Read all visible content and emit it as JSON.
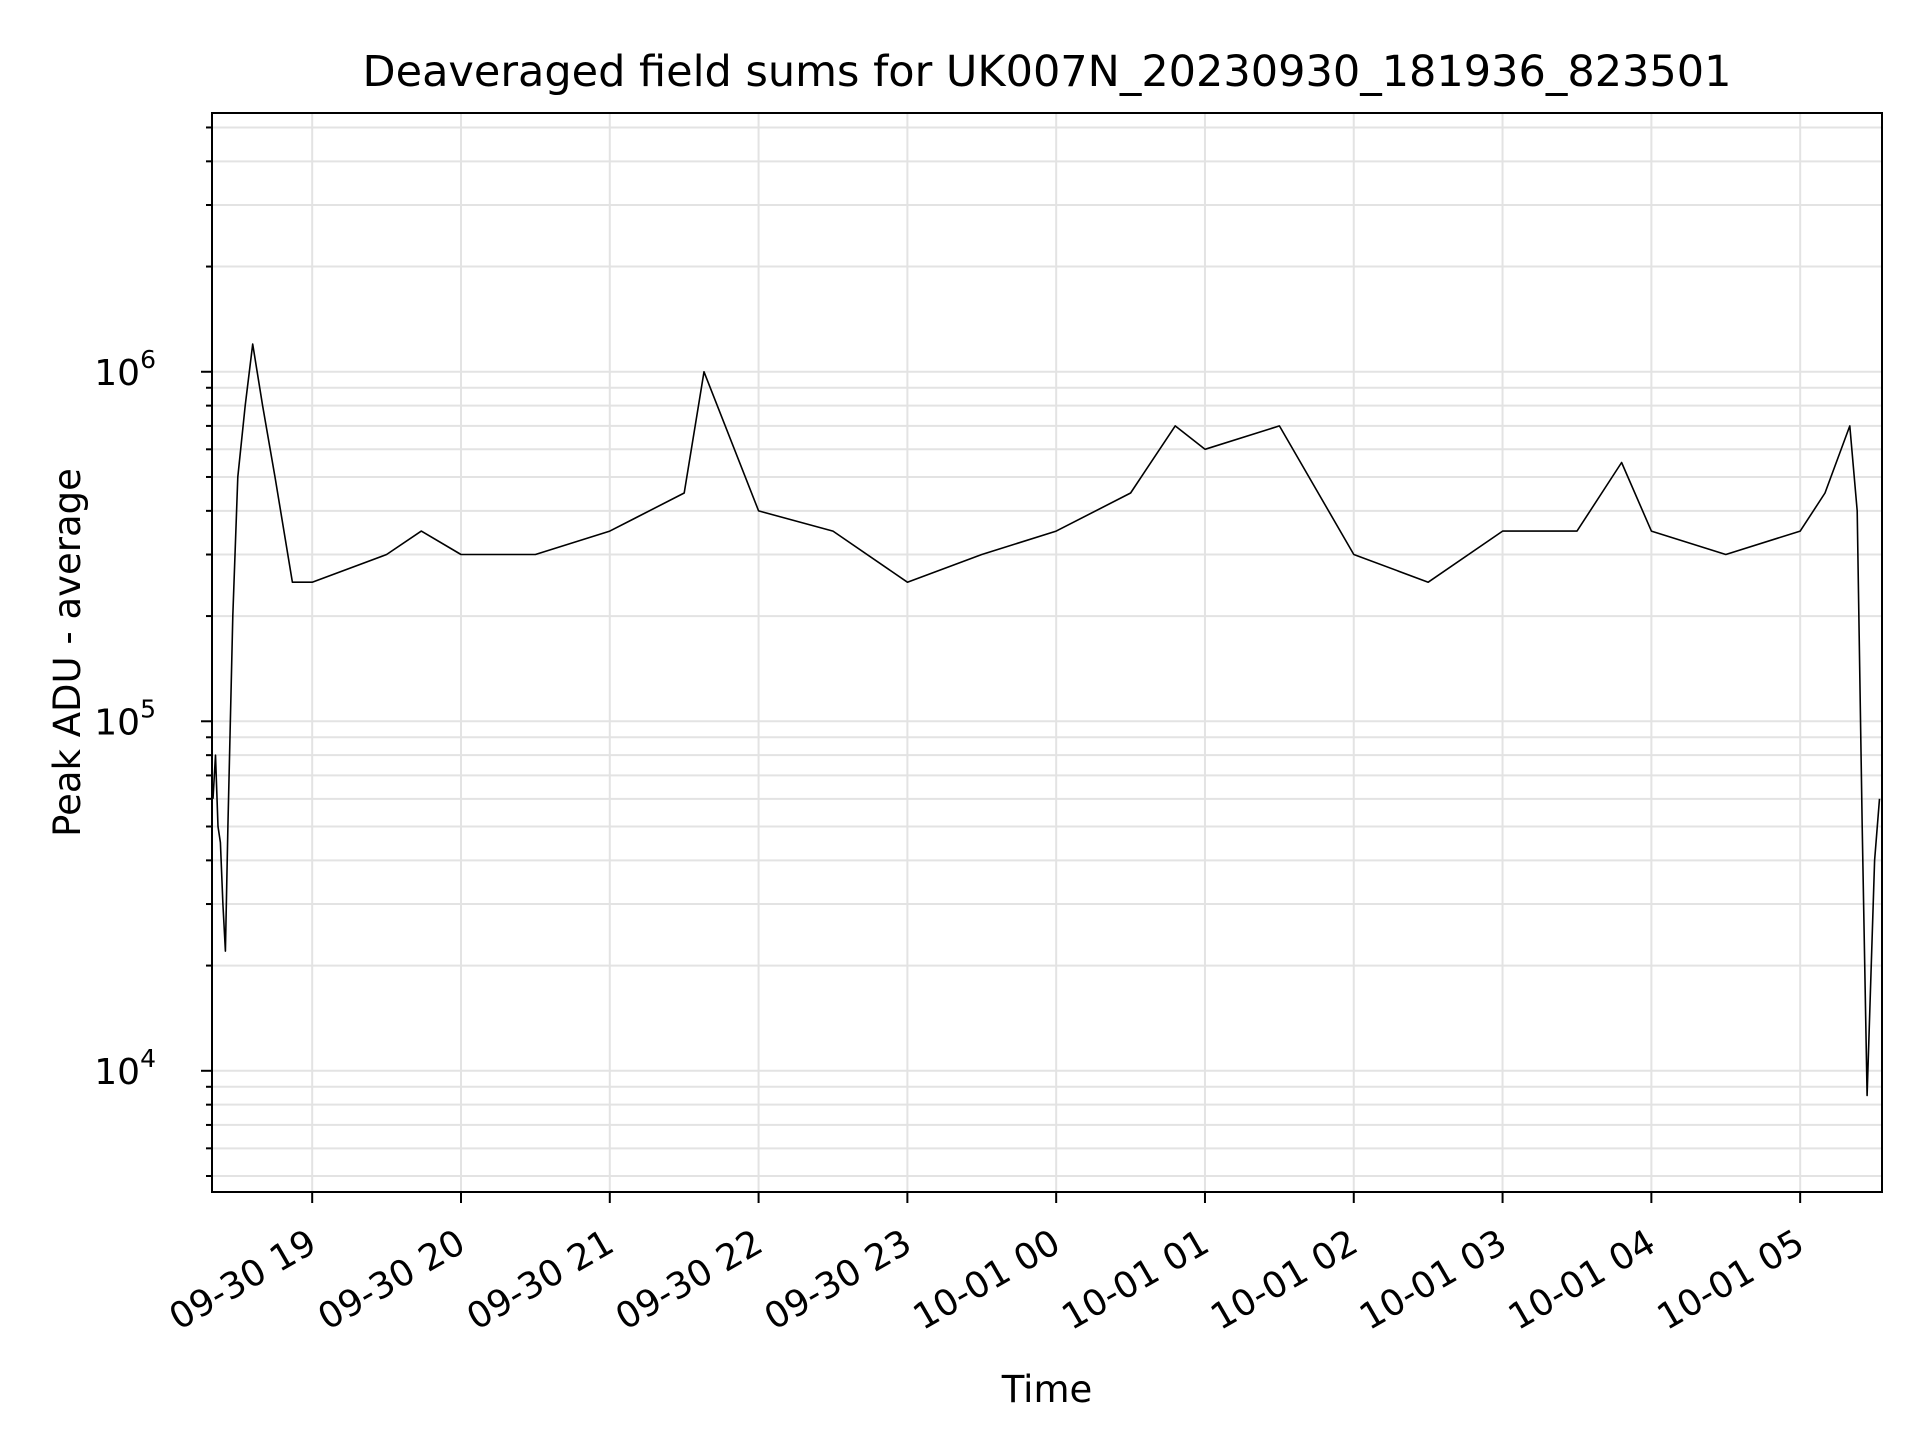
{
  "chart_data": {
    "type": "line",
    "title": "Deaveraged field sums for UK007N_20230930_181936_823501",
    "xlabel": "Time",
    "ylabel": "Peak ADU - average",
    "yscale": "log",
    "ylim": [
      4500,
      5500000
    ],
    "xlim": [
      "2023-09-30 18:19:36",
      "2023-10-01 05:33:00"
    ],
    "grid": true,
    "x_ticks": [
      "09-30 19",
      "09-30 20",
      "09-30 21",
      "09-30 22",
      "09-30 23",
      "10-01 00",
      "10-01 01",
      "10-01 02",
      "10-01 03",
      "10-01 04",
      "10-01 05"
    ],
    "x_tick_times": [
      "2023-09-30 19:00",
      "2023-09-30 20:00",
      "2023-09-30 21:00",
      "2023-09-30 22:00",
      "2023-09-30 23:00",
      "2023-10-01 00:00",
      "2023-10-01 01:00",
      "2023-10-01 02:00",
      "2023-10-01 03:00",
      "2023-10-01 04:00",
      "2023-10-01 05:00"
    ],
    "y_ticks": [
      {
        "value": 10000,
        "base": "10",
        "exp": "4"
      },
      {
        "value": 100000,
        "base": "10",
        "exp": "5"
      },
      {
        "value": 1000000,
        "base": "10",
        "exp": "6"
      }
    ],
    "line_color": "#000000",
    "series": [
      {
        "x": [
          "2023-09-30 18:20",
          "2023-09-30 18:21",
          "2023-09-30 18:22",
          "2023-09-30 18:23",
          "2023-09-30 18:24",
          "2023-09-30 18:25",
          "2023-09-30 18:26",
          "2023-09-30 18:28",
          "2023-09-30 18:30",
          "2023-09-30 18:33",
          "2023-09-30 18:36",
          "2023-09-30 18:40",
          "2023-09-30 18:45",
          "2023-09-30 18:52",
          "2023-09-30 19:00",
          "2023-09-30 19:30",
          "2023-09-30 19:44",
          "2023-09-30 20:00",
          "2023-09-30 20:30",
          "2023-09-30 21:00",
          "2023-09-30 21:30",
          "2023-09-30 21:38",
          "2023-09-30 22:00",
          "2023-09-30 22:30",
          "2023-09-30 23:00",
          "2023-09-30 23:30",
          "2023-10-01 00:00",
          "2023-10-01 00:30",
          "2023-10-01 00:48",
          "2023-10-01 01:00",
          "2023-10-01 01:30",
          "2023-10-01 02:00",
          "2023-10-01 02:30",
          "2023-10-01 03:00",
          "2023-10-01 03:30",
          "2023-10-01 03:48",
          "2023-10-01 04:00",
          "2023-10-01 04:30",
          "2023-10-01 05:00",
          "2023-10-01 05:10",
          "2023-10-01 05:20",
          "2023-10-01 05:23",
          "2023-10-01 05:25",
          "2023-10-01 05:27",
          "2023-10-01 05:30",
          "2023-10-01 05:32"
        ],
        "y": [
          60000,
          80000,
          50000,
          45000,
          30000,
          22000,
          50000,
          200000,
          500000,
          800000,
          1200000,
          800000,
          500000,
          250000,
          250000,
          300000,
          350000,
          300000,
          300000,
          350000,
          450000,
          1000000,
          400000,
          350000,
          250000,
          300000,
          350000,
          450000,
          700000,
          600000,
          700000,
          300000,
          250000,
          350000,
          350000,
          550000,
          350000,
          300000,
          350000,
          450000,
          700000,
          400000,
          50000,
          8500,
          40000,
          60000
        ]
      }
    ]
  }
}
